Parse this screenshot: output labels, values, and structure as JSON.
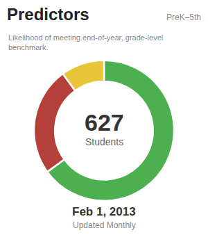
{
  "chart_data": {
    "type": "donut",
    "title": "Predictors",
    "subtitle": "Likelihood of meeting end-of-year, grade-level\nbenchmark.",
    "values": [
      65,
      25,
      10
    ],
    "colors": [
      "#4caf50",
      "#b5403a",
      "#e8c439"
    ],
    "annotations": [
      "PreK–5th",
      "627",
      "Students",
      "Feb 1, 2013",
      "Updated Monthly"
    ]
  }
}
